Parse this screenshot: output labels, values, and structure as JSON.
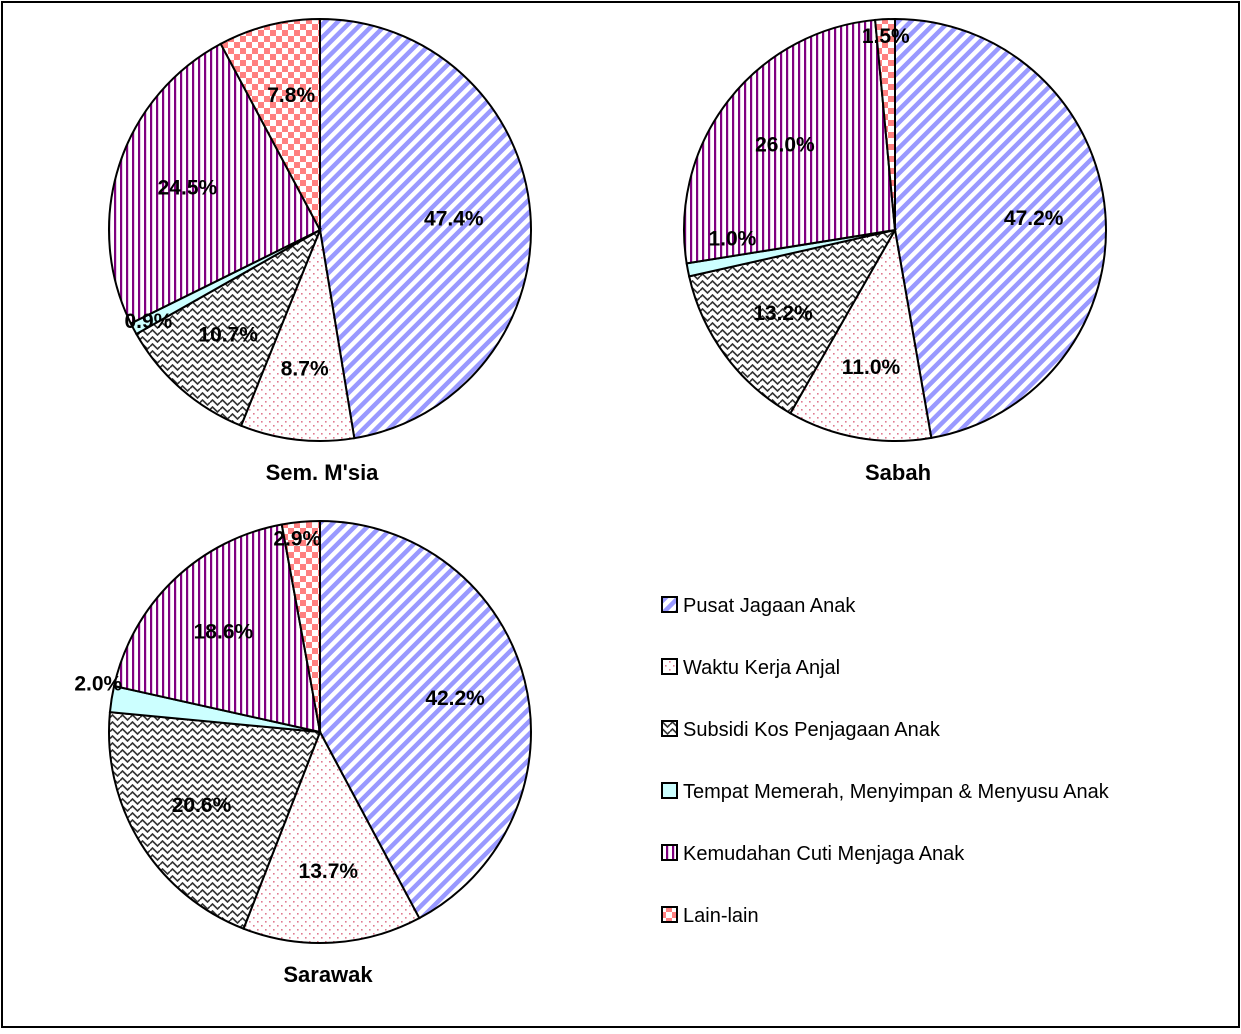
{
  "legend": [
    {
      "label": "Pusat Jagaan Anak",
      "pattern": "diag-blue"
    },
    {
      "label": "Waktu Kerja Anjal",
      "pattern": "dots-pink"
    },
    {
      "label": "Subsidi Kos Penjagaan Anak",
      "pattern": "wave-grey"
    },
    {
      "label": "Tempat Memerah, Menyimpan & Menyusu Anak",
      "pattern": "solid-cyan"
    },
    {
      "label": "Kemudahan Cuti Menjaga Anak",
      "pattern": "vstripe-purple"
    },
    {
      "label": "Lain-lain",
      "pattern": "check-red"
    }
  ],
  "colors": {
    "diag-blue": "#9999ff",
    "dots-pink": "#e07a90",
    "wave-grey": "#333333",
    "solid-cyan": "#ccffff",
    "vstripe-purple": "#800080",
    "check-red": "#ff8080"
  },
  "chart_data": [
    {
      "type": "pie",
      "title": "Sem. M'sia",
      "categories": [
        "Pusat Jagaan Anak",
        "Waktu Kerja Anjal",
        "Subsidi Kos Penjagaan Anak",
        "Tempat Memerah, Menyimpan & Menyusu Anak",
        "Kemudahan Cuti Menjaga Anak",
        "Lain-lain"
      ],
      "values": [
        47.4,
        8.7,
        10.7,
        0.9,
        24.5,
        7.8
      ],
      "labels": [
        "47.4%",
        "8.7%",
        "10.7%",
        "0.9%",
        "24.5%",
        "7.8%"
      ]
    },
    {
      "type": "pie",
      "title": "Sabah",
      "categories": [
        "Pusat Jagaan Anak",
        "Waktu Kerja Anjal",
        "Subsidi Kos Penjagaan Anak",
        "Tempat Memerah, Menyimpan & Menyusu Anak",
        "Kemudahan Cuti Menjaga Anak",
        "Lain-lain"
      ],
      "values": [
        47.2,
        11.0,
        13.2,
        1.0,
        26.0,
        1.5
      ],
      "labels": [
        "47.2%",
        "11.0%",
        "13.2%",
        "1.0%",
        "26.0%",
        "1.5%"
      ]
    },
    {
      "type": "pie",
      "title": "Sarawak",
      "categories": [
        "Pusat Jagaan Anak",
        "Waktu Kerja Anjal",
        "Subsidi Kos Penjagaan Anak",
        "Tempat Memerah, Menyimpan & Menyusu Anak",
        "Kemudahan Cuti Menjaga Anak",
        "Lain-lain"
      ],
      "values": [
        42.2,
        13.7,
        20.6,
        2.0,
        18.6,
        2.9
      ],
      "labels": [
        "42.2%",
        "13.7%",
        "20.6%",
        "2.0%",
        "18.6%",
        "2.9%"
      ]
    }
  ]
}
